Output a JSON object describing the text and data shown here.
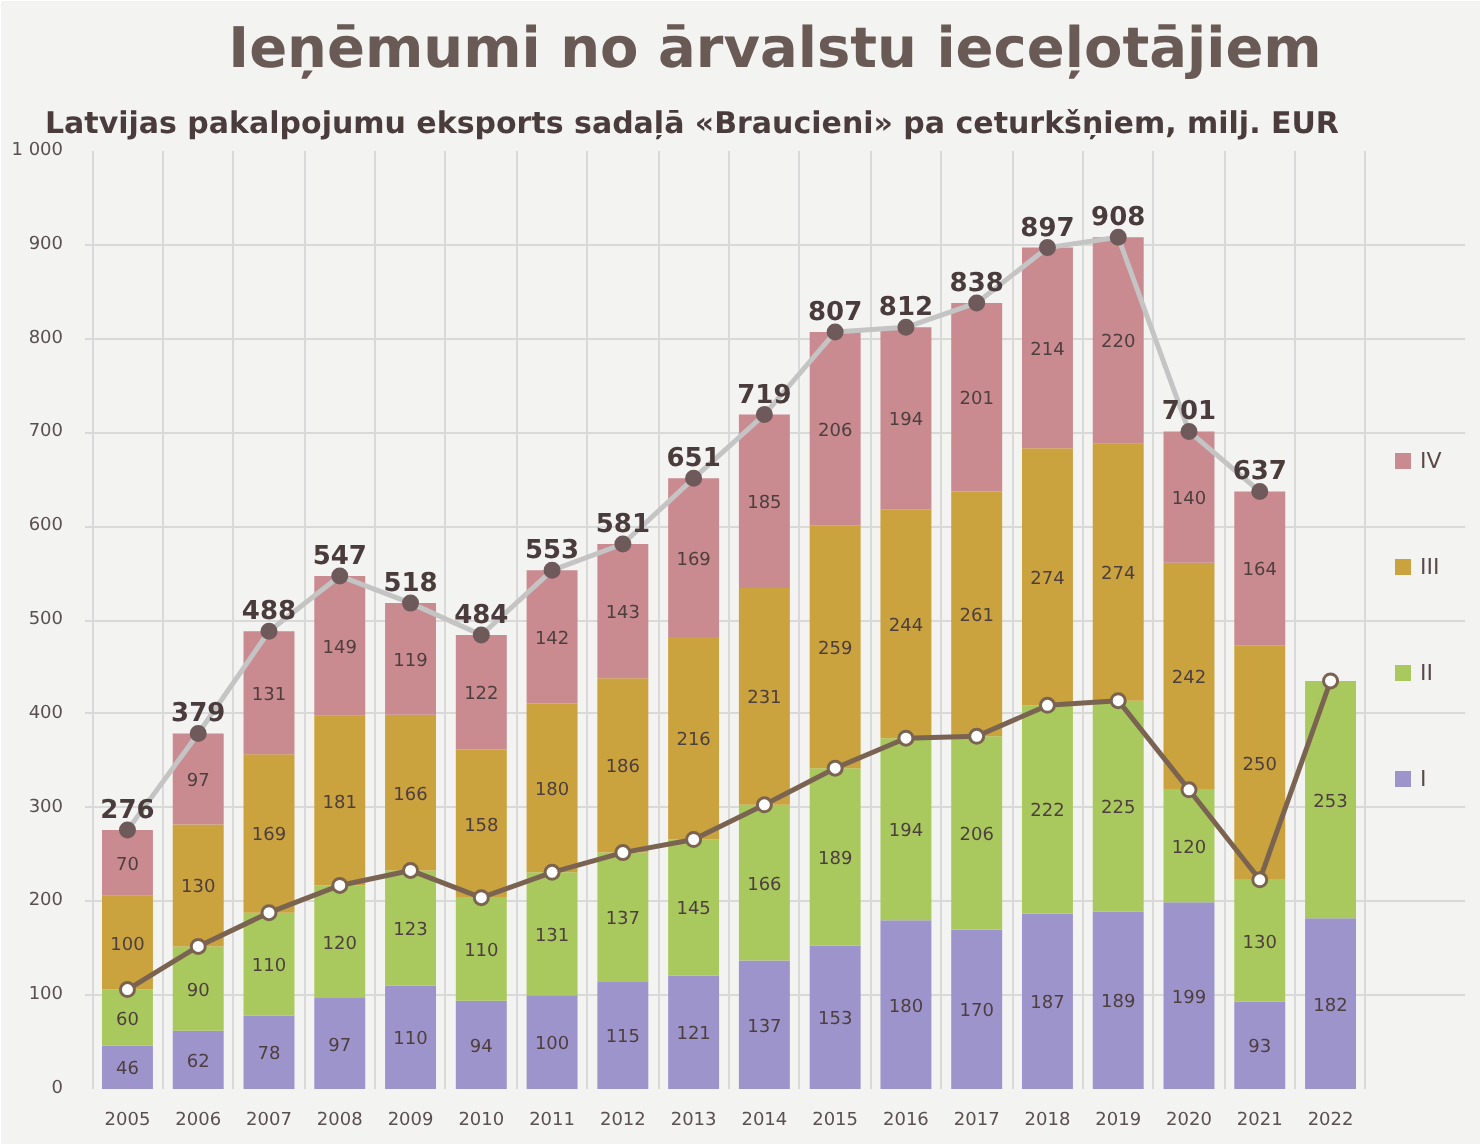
{
  "chart_data": {
    "type": "bar",
    "stacked": true,
    "title": "Ieņēmumi no ārvalstu ieceļotājiem",
    "subtitle": "Latvijas pakalpojumu eksports sadaļā «Braucieni» pa ceturkšņiem, milj. EUR",
    "categories": [
      "2005",
      "2006",
      "2007",
      "2008",
      "2009",
      "2010",
      "2011",
      "2012",
      "2013",
      "2014",
      "2015",
      "2016",
      "2017",
      "2018",
      "2019",
      "2020",
      "2021",
      "2022"
    ],
    "series": [
      {
        "name": "I",
        "color": "#9d94cc",
        "values": [
          46,
          62,
          78,
          97,
          110,
          94,
          100,
          115,
          121,
          137,
          153,
          180,
          170,
          187,
          189,
          199,
          93,
          182
        ],
        "value_labels": [
          "46",
          "62",
          "78",
          "97",
          "110",
          "94",
          "100",
          "115",
          "121",
          "137",
          "153",
          "180",
          "170",
          "187",
          "189",
          "199",
          "93",
          "182"
        ]
      },
      {
        "name": "II",
        "color": "#a9c95e",
        "values": [
          60,
          90,
          110,
          120,
          123,
          110,
          131,
          137,
          145,
          166,
          189,
          194,
          206,
          222,
          225,
          120,
          130,
          253
        ],
        "value_labels": [
          "60",
          "90",
          "110",
          "120",
          "123",
          "110",
          "131",
          "137",
          "145",
          "166",
          "189",
          "194",
          "206",
          "222",
          "225",
          "120",
          "130",
          "253"
        ]
      },
      {
        "name": "III",
        "color": "#caa23e",
        "values": [
          100,
          130,
          169,
          181,
          166,
          158,
          180,
          186,
          216,
          231,
          259,
          244,
          261,
          274,
          274,
          242,
          250,
          null
        ],
        "value_labels": [
          "100",
          "130",
          "169",
          "181",
          "166",
          "158",
          "180",
          "186",
          "216",
          "231",
          "259",
          "244",
          "261",
          "274",
          "274",
          "242",
          "250",
          null
        ]
      },
      {
        "name": "IV",
        "color": "#c98a90",
        "values": [
          70,
          97,
          131,
          149,
          119,
          122,
          142,
          143,
          169,
          185,
          206,
          194,
          201,
          214,
          220,
          140,
          164,
          null
        ],
        "value_labels": [
          "70",
          "97",
          "131",
          "149",
          "119",
          "122",
          "142",
          "143",
          "169",
          "185",
          "206",
          "194",
          "201",
          "214",
          "220",
          "140",
          "164",
          null
        ]
      },
      {
        "type": "line",
        "color": "#c4c4c4",
        "values": [
          276,
          379,
          488,
          547,
          518,
          484,
          553,
          581,
          651,
          719,
          807,
          812,
          838,
          897,
          908,
          701,
          637,
          null
        ],
        "value_labels": [
          "276",
          "379",
          "488",
          "547",
          "518",
          "484",
          "553",
          "581",
          "651",
          "719",
          "807",
          "812",
          "838",
          "897",
          "908",
          "701",
          "637",
          null
        ]
      },
      {
        "type": "line",
        "color": "#7b6352",
        "values": [
          106,
          152,
          188,
          217,
          233,
          204,
          231,
          252,
          266,
          303,
          342,
          374,
          376,
          409,
          414,
          319,
          223,
          435
        ]
      }
    ],
    "ylim": [
      0,
      1000
    ],
    "yticks": [
      0,
      100,
      200,
      300,
      400,
      500,
      600,
      700,
      800,
      900,
      {
        "value": 1000,
        "label": "1 000"
      }
    ],
    "grid": true,
    "legend": "right",
    "marker": "circle"
  }
}
